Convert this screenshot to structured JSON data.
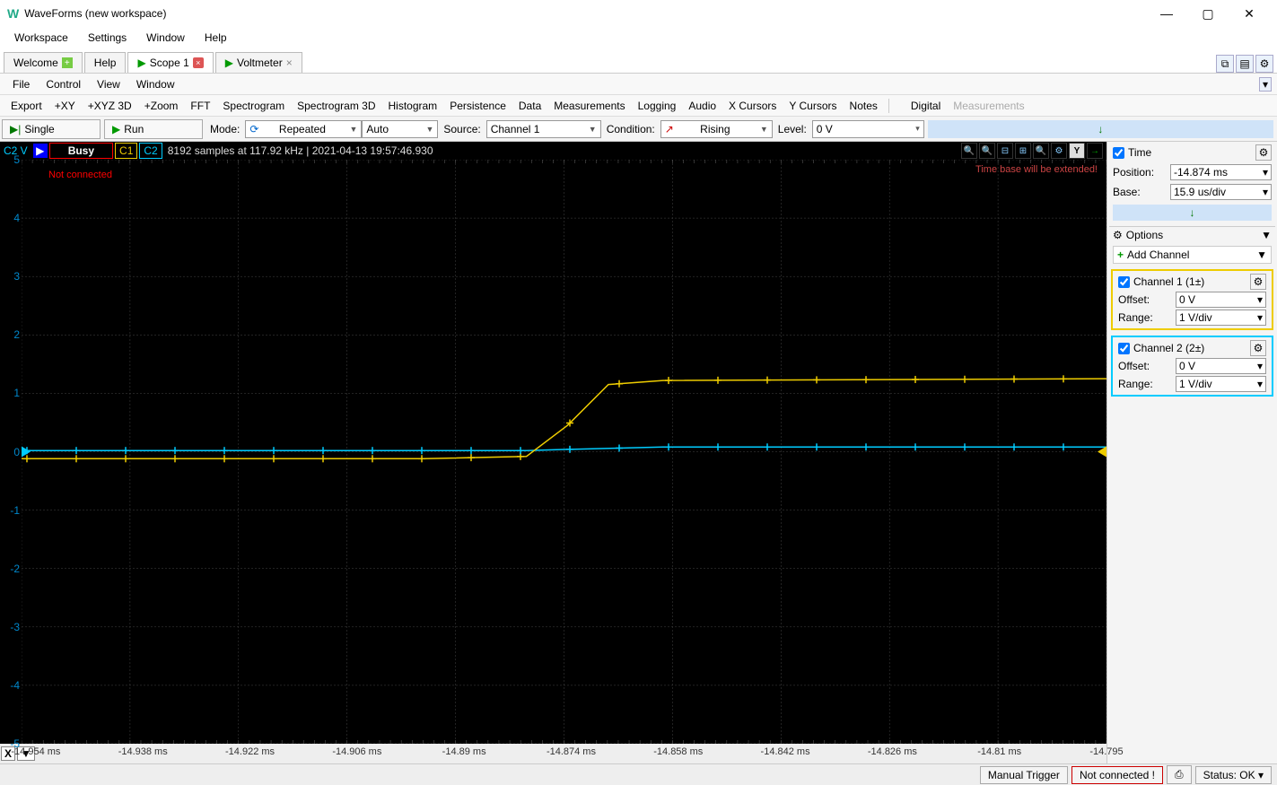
{
  "window": {
    "title": "WaveForms (new workspace)",
    "logo": "W"
  },
  "menubar": [
    "Workspace",
    "Settings",
    "Window",
    "Help"
  ],
  "tabs": [
    {
      "label": "Welcome",
      "icon": "plus",
      "active": false
    },
    {
      "label": "Help",
      "icon": "",
      "active": false
    },
    {
      "label": "Scope 1",
      "icon": "play",
      "close": true,
      "active": true
    },
    {
      "label": "Voltmeter",
      "icon": "play",
      "closeg": true,
      "active": false
    }
  ],
  "submenu": [
    "File",
    "Control",
    "View",
    "Window"
  ],
  "toolbar2": {
    "items": [
      "Export",
      "+XY",
      "+XYZ 3D",
      "+Zoom",
      "FFT",
      "Spectrogram",
      "Spectrogram 3D",
      "Histogram",
      "Persistence",
      "Data",
      "Measurements",
      "Logging",
      "Audio",
      "X Cursors",
      "Y Cursors",
      "Notes"
    ],
    "right": [
      "Digital",
      "Measurements"
    ]
  },
  "controlrow": {
    "single": "Single",
    "run": "Run",
    "mode_label": "Mode:",
    "mode": "Repeated",
    "trigger": "Auto",
    "source_label": "Source:",
    "source": "Channel 1",
    "condition_label": "Condition:",
    "condition": "Rising",
    "level_label": "Level:",
    "level": "0 V"
  },
  "status_strip": {
    "c2v": "C2 V",
    "busy": "Busy",
    "c1": "C1",
    "c2": "C2",
    "info": "8192 samples at 117.92 kHz | 2021-04-13 19:57:46.930",
    "ybtn": "Y",
    "overlay_left": "Not connected",
    "overlay_right": "Time base will be extended!"
  },
  "scope": {
    "background": "#000000",
    "grid_color": "#4a4a4a",
    "xlim": [
      -14.954,
      -14.795
    ],
    "ylim": [
      -5,
      5
    ],
    "ytick_step": 1,
    "xtick_step": 0.016,
    "xticks": [
      "-14.954 ms",
      "-14.938 ms",
      "-14.922 ms",
      "-14.906 ms",
      "-14.89 ms",
      "-14.874 ms",
      "-14.858 ms",
      "-14.842 ms",
      "-14.826 ms",
      "-14.81 ms",
      "-14.795"
    ],
    "yticks": [
      "5",
      "4",
      "3",
      "2",
      "1",
      "0",
      "-1",
      "-2",
      "-3",
      "-4",
      "-5"
    ],
    "traces": {
      "c1": {
        "color": "#eecc00",
        "points": [
          [
            -14.954,
            -0.12
          ],
          [
            -14.895,
            -0.12
          ],
          [
            -14.88,
            -0.08
          ],
          [
            -14.874,
            0.45
          ],
          [
            -14.868,
            1.15
          ],
          [
            -14.86,
            1.22
          ],
          [
            -14.795,
            1.25
          ]
        ]
      },
      "c2": {
        "color": "#00ccff",
        "points": [
          [
            -14.954,
            0.02
          ],
          [
            -14.88,
            0.02
          ],
          [
            -14.874,
            0.04
          ],
          [
            -14.86,
            0.08
          ],
          [
            -14.795,
            0.08
          ]
        ]
      }
    },
    "tick_interval_screen_c1": 55,
    "tick_interval_screen_c2": 55
  },
  "side": {
    "time_label": "Time",
    "position_label": "Position:",
    "position": "-14.874 ms",
    "base_label": "Base:",
    "base": "15.9 us/div",
    "options": "Options",
    "add_channel": "Add Channel",
    "ch1": {
      "label": "Channel 1 (1±)",
      "offset_label": "Offset:",
      "offset": "0 V",
      "range_label": "Range:",
      "range": "1 V/div",
      "color": "#eecc00"
    },
    "ch2": {
      "label": "Channel 2 (2±)",
      "offset_label": "Offset:",
      "offset": "0 V",
      "range_label": "Range:",
      "range": "1 V/div",
      "color": "#00ccff"
    }
  },
  "statusbar": {
    "manual_trigger": "Manual Trigger",
    "not_connected": "Not connected !",
    "status": "Status: OK"
  }
}
